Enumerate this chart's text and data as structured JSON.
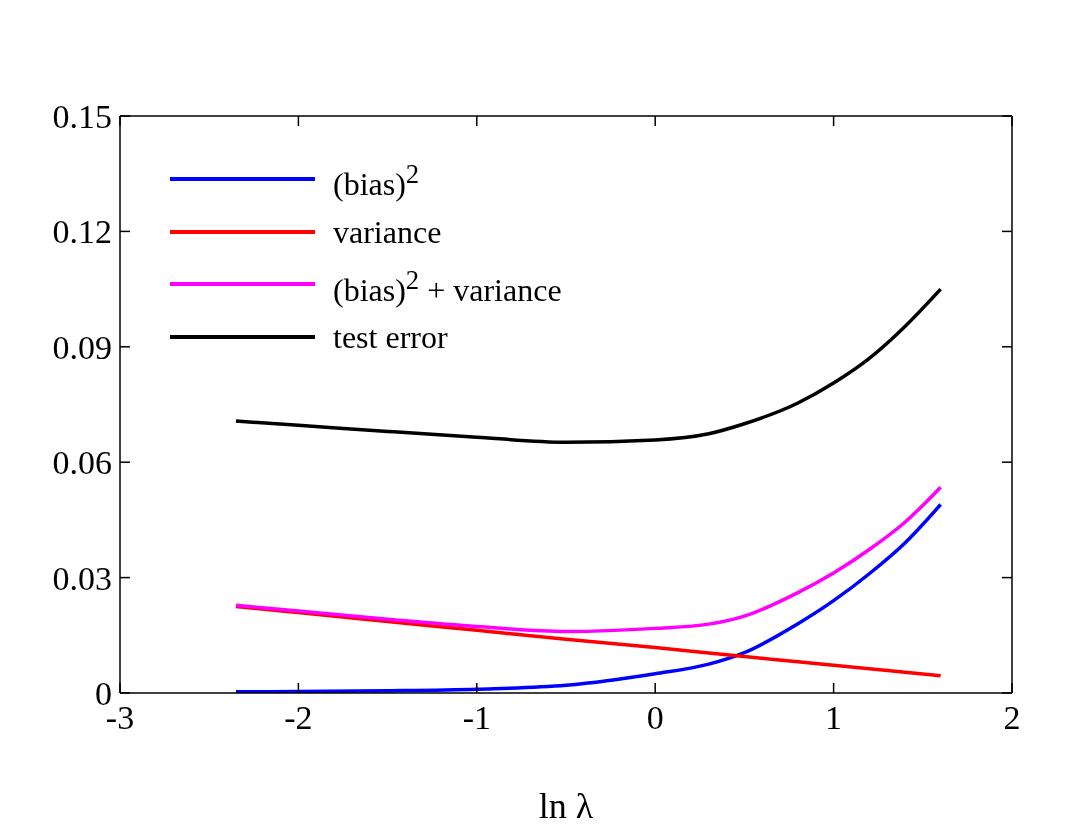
{
  "chart_data": {
    "type": "line",
    "xlabel": "ln λ",
    "x": [
      -2.35,
      -2,
      -1.5,
      -1,
      -0.5,
      0,
      0.3,
      0.5,
      0.8,
      1.0,
      1.2,
      1.4,
      1.6
    ],
    "series": [
      {
        "name": "(bias)$^{2}$",
        "color": "#0000ff",
        "values": [
          0.0003,
          0.0004,
          0.0006,
          0.001,
          0.002,
          0.005,
          0.0075,
          0.0105,
          0.018,
          0.024,
          0.031,
          0.039,
          0.049
        ]
      },
      {
        "name": "variance",
        "color": "#ff0000",
        "values": [
          0.0225,
          0.0209,
          0.0186,
          0.0163,
          0.014,
          0.0118,
          0.0104,
          0.0095,
          0.0081,
          0.0072,
          0.0063,
          0.0054,
          0.0045
        ]
      },
      {
        "name": "(bias)$^{2}$ + variance",
        "color": "#ff00ff",
        "values": [
          0.0228,
          0.0213,
          0.0192,
          0.0173,
          0.016,
          0.0168,
          0.0179,
          0.02,
          0.0261,
          0.0312,
          0.0373,
          0.0444,
          0.0535
        ]
      },
      {
        "name": "test error",
        "color": "#000000",
        "values": [
          0.0707,
          0.0696,
          0.068,
          0.0665,
          0.0652,
          0.0658,
          0.0674,
          0.07,
          0.0754,
          0.0806,
          0.087,
          0.0953,
          0.105
        ]
      }
    ],
    "xlim": [
      -3,
      2
    ],
    "xticks": [
      -3,
      -2,
      -1,
      0,
      1,
      2
    ],
    "ylim": [
      0,
      0.15
    ],
    "yticks": [
      0,
      0.03,
      0.06,
      0.09,
      0.12,
      0.15
    ],
    "grid": false,
    "legend": "top left",
    "marker": "none",
    "line_style": "solid"
  }
}
